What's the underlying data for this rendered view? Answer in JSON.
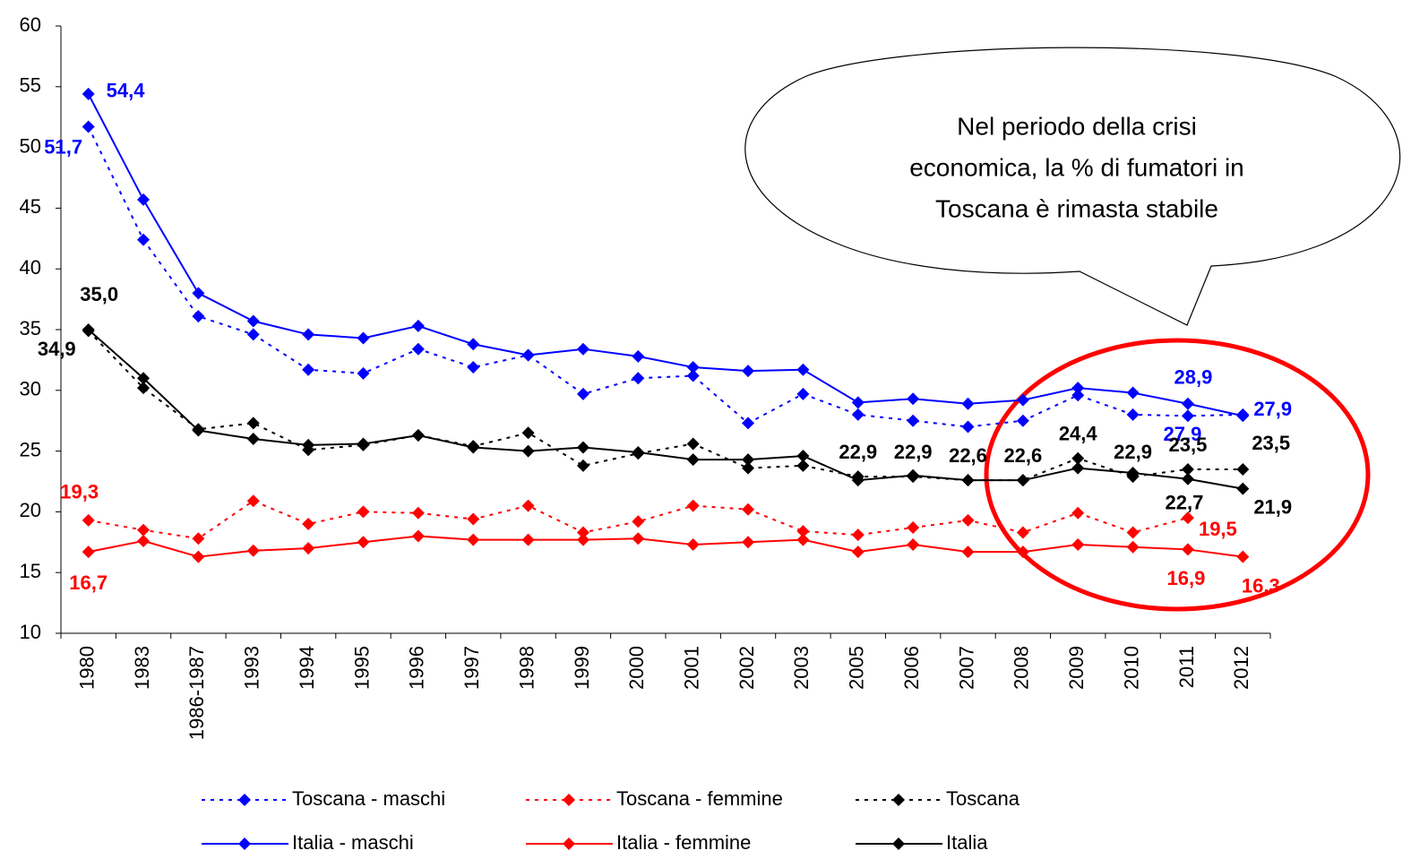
{
  "chart_data": {
    "type": "line",
    "categories": [
      "1980",
      "1983",
      "1986-1987",
      "1993",
      "1994",
      "1995",
      "1996",
      "1997",
      "1998",
      "1999",
      "2000",
      "2001",
      "2002",
      "2003",
      "2005",
      "2006",
      "2007",
      "2008",
      "2009",
      "2010",
      "2011",
      "2012"
    ],
    "ylim": [
      10,
      60
    ],
    "yticks": [
      10,
      15,
      20,
      25,
      30,
      35,
      40,
      45,
      50,
      55,
      60
    ],
    "annotation": [
      "Nel periodo della crisi",
      "economica, la % di fumatori in",
      "Toscana è rimasta stabile"
    ],
    "series": [
      {
        "name": "Toscana - maschi",
        "color": "#0000ff",
        "dashed": true,
        "values": [
          51.7,
          42.4,
          36.1,
          34.6,
          31.7,
          31.4,
          33.4,
          31.9,
          32.9,
          29.7,
          31.0,
          31.2,
          27.3,
          29.7,
          28.0,
          27.5,
          27.0,
          27.5,
          29.6,
          28.0,
          27.9,
          28.0
        ],
        "value_labels": [
          "51,7",
          null,
          null,
          null,
          null,
          null,
          null,
          null,
          null,
          null,
          null,
          null,
          null,
          null,
          null,
          null,
          null,
          null,
          null,
          null,
          "27,9",
          null
        ]
      },
      {
        "name": "Toscana - femmine",
        "color": "#ff0000",
        "dashed": true,
        "values": [
          19.3,
          18.5,
          17.8,
          20.9,
          19.0,
          20.0,
          19.9,
          19.4,
          20.5,
          18.3,
          19.2,
          20.5,
          20.2,
          18.4,
          18.1,
          18.7,
          19.3,
          18.3,
          19.9,
          18.3,
          19.5,
          null
        ],
        "value_labels": [
          "19,3",
          null,
          null,
          null,
          null,
          null,
          null,
          null,
          null,
          null,
          null,
          null,
          null,
          null,
          null,
          null,
          null,
          null,
          null,
          null,
          "19,5",
          null
        ]
      },
      {
        "name": "Toscana",
        "color": "#000000",
        "dashed": true,
        "values": [
          34.9,
          30.2,
          26.8,
          27.3,
          25.1,
          25.5,
          26.3,
          25.4,
          26.5,
          23.8,
          24.8,
          25.6,
          23.6,
          23.8,
          22.9,
          22.9,
          22.6,
          22.6,
          24.4,
          22.9,
          23.5,
          23.5
        ],
        "value_labels": [
          "34,9",
          null,
          null,
          null,
          null,
          null,
          null,
          null,
          null,
          null,
          null,
          null,
          null,
          null,
          "22,9",
          "22,9",
          "22,6",
          "22,6",
          "24,4",
          "22,9",
          "23,5",
          "23,5"
        ]
      },
      {
        "name": "Italia - maschi",
        "color": "#0000ff",
        "dashed": false,
        "values": [
          54.4,
          45.7,
          38.0,
          35.7,
          34.6,
          34.3,
          35.3,
          33.8,
          32.9,
          33.4,
          32.8,
          31.9,
          31.6,
          31.7,
          29.0,
          29.3,
          28.9,
          29.2,
          30.2,
          29.8,
          28.9,
          27.9
        ],
        "value_labels": [
          "54,4",
          null,
          null,
          null,
          null,
          null,
          null,
          null,
          null,
          null,
          null,
          null,
          null,
          null,
          null,
          null,
          null,
          null,
          null,
          null,
          "28,9",
          "27,9"
        ]
      },
      {
        "name": "Italia - femmine",
        "color": "#ff0000",
        "dashed": false,
        "values": [
          16.7,
          17.6,
          16.3,
          16.8,
          17.0,
          17.5,
          18.0,
          17.7,
          17.7,
          17.7,
          17.8,
          17.3,
          17.5,
          17.7,
          16.7,
          17.3,
          16.7,
          16.7,
          17.3,
          17.1,
          16.9,
          16.3
        ],
        "value_labels": [
          "16,7",
          null,
          null,
          null,
          null,
          null,
          null,
          null,
          null,
          null,
          null,
          null,
          null,
          null,
          null,
          null,
          null,
          null,
          null,
          null,
          "16,9",
          "16,3"
        ]
      },
      {
        "name": "Italia",
        "color": "#000000",
        "dashed": false,
        "values": [
          35.0,
          31.0,
          26.7,
          26.0,
          25.5,
          25.6,
          26.3,
          25.3,
          25.0,
          25.3,
          24.9,
          24.3,
          24.3,
          24.6,
          22.6,
          23.0,
          22.6,
          22.6,
          23.6,
          23.2,
          22.7,
          21.9
        ],
        "value_labels": [
          "35,0",
          null,
          null,
          null,
          null,
          null,
          null,
          null,
          null,
          null,
          null,
          null,
          null,
          null,
          null,
          null,
          null,
          null,
          null,
          null,
          "22,7",
          "21,9"
        ]
      }
    ]
  }
}
